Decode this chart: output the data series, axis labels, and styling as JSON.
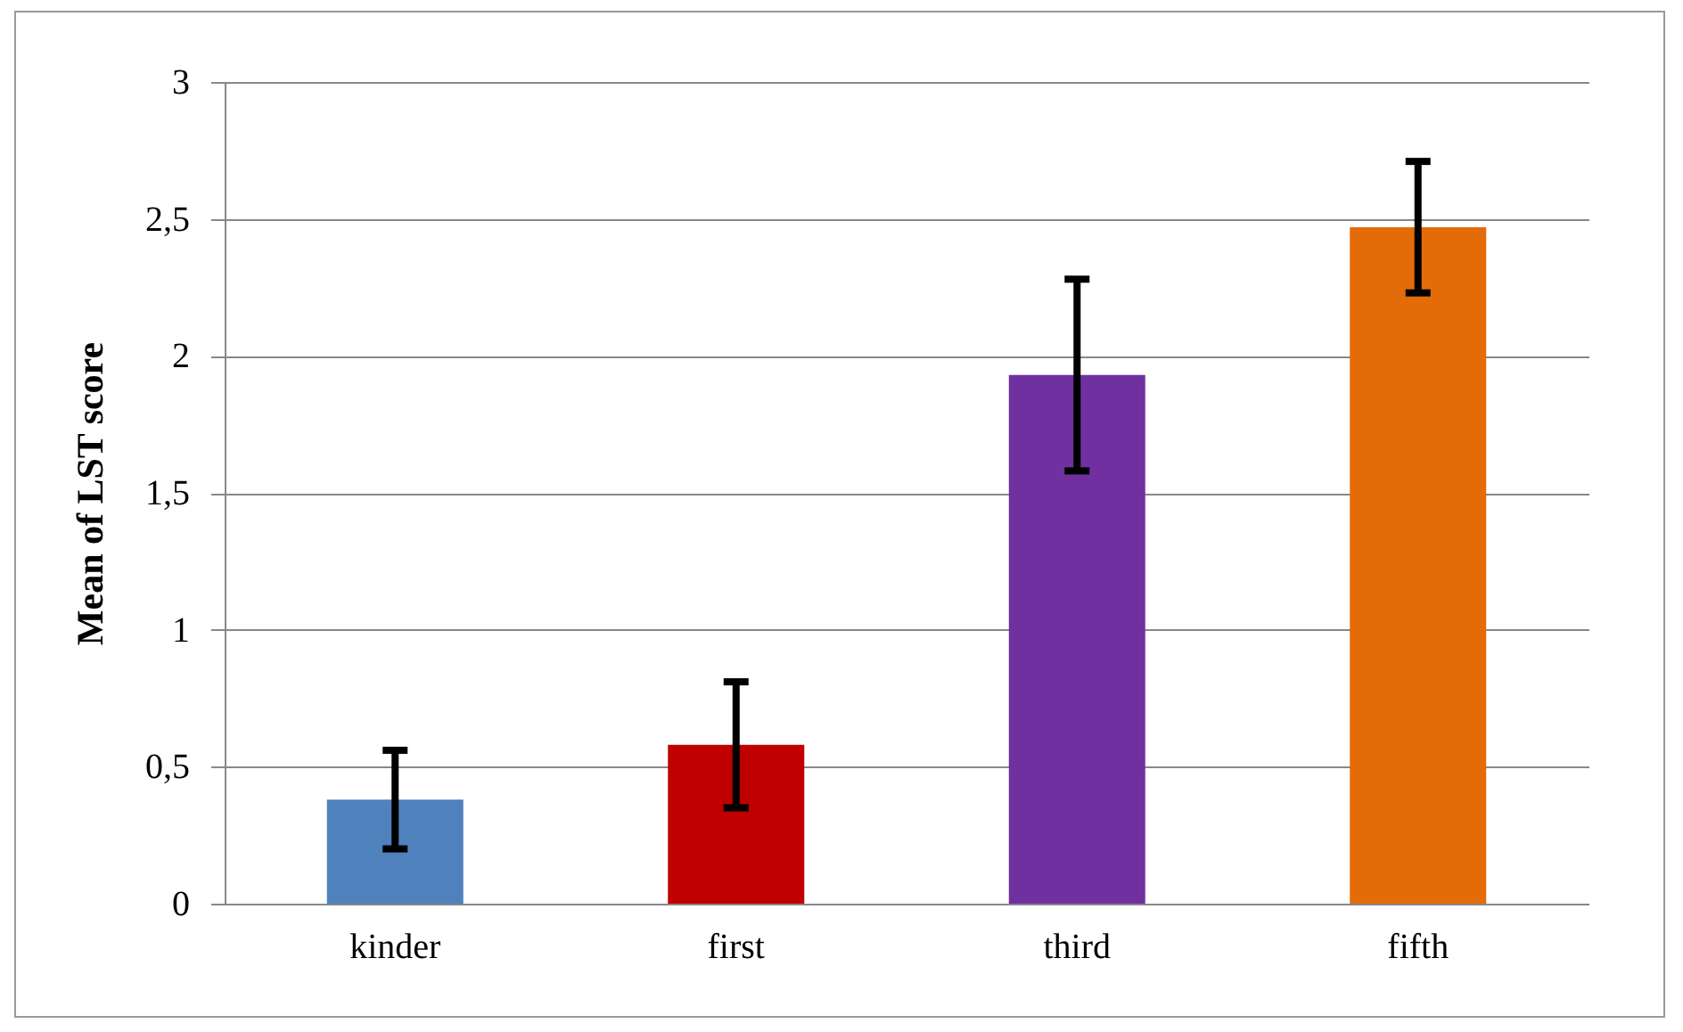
{
  "chart_data": {
    "type": "bar",
    "ylabel": "Mean of LST score",
    "categories": [
      "kinder",
      "first",
      "third",
      "fifth"
    ],
    "values": [
      0.38,
      0.58,
      1.93,
      2.47
    ],
    "colors": [
      "#4f81bd",
      "#c00000",
      "#7030a0",
      "#e36c09"
    ],
    "errors": [
      0.18,
      0.23,
      0.35,
      0.24
    ],
    "ylim": [
      0,
      3
    ],
    "yticks": [
      0,
      {
        "value": 0.5,
        "label": "0,5"
      },
      1,
      {
        "value": 1.5,
        "label": "1,5"
      },
      2,
      {
        "value": 2.5,
        "label": "2,5"
      },
      3
    ],
    "grid": "y"
  }
}
